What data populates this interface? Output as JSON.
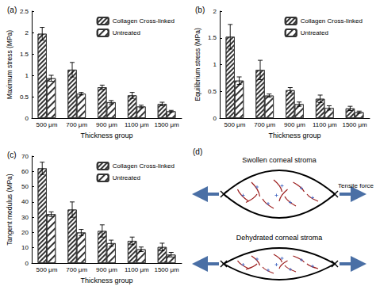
{
  "chart_data": [
    {
      "type": "bar",
      "title": "(a)",
      "x_label": "Thickness group",
      "y_label": "Maximum stress (MPa)",
      "categories": [
        "500 μm",
        "700 μm",
        "900 μm",
        "1100 μm",
        "1500 μm"
      ],
      "series": [
        {
          "name": "Collagen Cross-linked",
          "values": [
            1.97,
            1.13,
            0.72,
            0.53,
            0.33
          ],
          "errors": [
            0.15,
            0.17,
            0.05,
            0.07,
            0.04
          ]
        },
        {
          "name": "Untreated",
          "values": [
            0.93,
            0.57,
            0.37,
            0.27,
            0.16
          ],
          "errors": [
            0.07,
            0.03,
            0.04,
            0.03,
            0.02
          ]
        }
      ],
      "ylim": [
        0,
        2.5
      ],
      "yticks": [
        0,
        0.5,
        1,
        1.5,
        2,
        2.5
      ],
      "grid": false,
      "legend": "upper right"
    },
    {
      "type": "bar",
      "title": "(b)",
      "x_label": "Thickness group",
      "y_label": "Equilibrium stress (MPa)",
      "categories": [
        "500 μm",
        "700 μm",
        "900 μm",
        "1100 μm",
        "1500 μm"
      ],
      "series": [
        {
          "name": "Collagen Cross-linked",
          "values": [
            1.52,
            0.9,
            0.52,
            0.36,
            0.18
          ],
          "errors": [
            0.23,
            0.18,
            0.05,
            0.07,
            0.04
          ]
        },
        {
          "name": "Untreated",
          "values": [
            0.7,
            0.42,
            0.26,
            0.19,
            0.11
          ],
          "errors": [
            0.07,
            0.03,
            0.04,
            0.04,
            0.02
          ]
        }
      ],
      "ylim": [
        0,
        2
      ],
      "yticks": [
        0,
        0.5,
        1,
        1.5,
        2
      ],
      "grid": false,
      "legend": "upper right"
    },
    {
      "type": "bar",
      "title": "(c)",
      "x_label": "Thickness group",
      "y_label": "Tangent modulus (MPa)",
      "categories": [
        "500 μm",
        "700 μm",
        "900 μm",
        "1100 μm",
        "1500 μm"
      ],
      "series": [
        {
          "name": "Collagen Cross-linked",
          "values": [
            62,
            35,
            21,
            14.5,
            10.5
          ],
          "errors": [
            4,
            5,
            4,
            2.5,
            2.5
          ]
        },
        {
          "name": "Untreated",
          "values": [
            32,
            20,
            13,
            9,
            5.5
          ],
          "errors": [
            1.5,
            2,
            2,
            1.5,
            1.5
          ]
        }
      ],
      "ylim": [
        0,
        70
      ],
      "yticks": [
        0,
        10,
        20,
        30,
        40,
        50,
        60,
        70
      ],
      "grid": false,
      "legend": "upper right"
    }
  ],
  "diagram": {
    "label": "(d)",
    "top_label": "Swollen corneal stroma",
    "force_label": "Tensile force",
    "bottom_label": "Dehydrated corneal stroma"
  }
}
